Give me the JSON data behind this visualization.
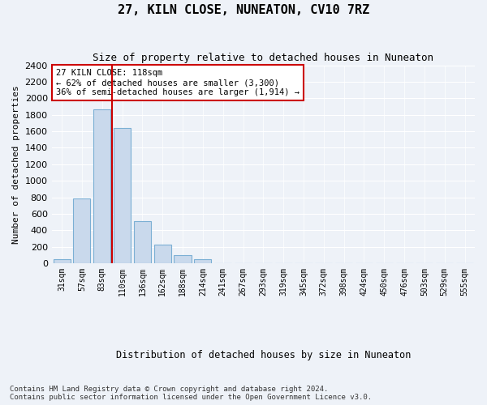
{
  "title": "27, KILN CLOSE, NUNEATON, CV10 7RZ",
  "subtitle": "Size of property relative to detached houses in Nuneaton",
  "xlabel": "Distribution of detached houses by size in Nuneaton",
  "ylabel": "Number of detached properties",
  "bar_labels": [
    "31sqm",
    "57sqm",
    "83sqm",
    "110sqm",
    "136sqm",
    "162sqm",
    "188sqm",
    "214sqm",
    "241sqm",
    "267sqm",
    "293sqm",
    "319sqm",
    "345sqm",
    "372sqm",
    "398sqm",
    "424sqm",
    "450sqm",
    "476sqm",
    "503sqm",
    "529sqm",
    "555sqm"
  ],
  "bar_values": [
    50,
    790,
    1870,
    1640,
    510,
    230,
    100,
    50,
    0,
    0,
    0,
    0,
    0,
    0,
    0,
    0,
    0,
    0,
    0,
    0,
    0
  ],
  "bar_color": "#c9d9ec",
  "bar_edgecolor": "#7bafd4",
  "vline_color": "#cc0000",
  "annotation_text": "27 KILN CLOSE: 118sqm\n← 62% of detached houses are smaller (3,300)\n36% of semi-detached houses are larger (1,914) →",
  "annotation_box_edgecolor": "#cc0000",
  "ylim": [
    0,
    2400
  ],
  "yticks": [
    0,
    200,
    400,
    600,
    800,
    1000,
    1200,
    1400,
    1600,
    1800,
    2000,
    2200,
    2400
  ],
  "footer_line1": "Contains HM Land Registry data © Crown copyright and database right 2024.",
  "footer_line2": "Contains public sector information licensed under the Open Government Licence v3.0.",
  "background_color": "#eef2f8",
  "plot_background": "#eef2f8",
  "grid_color": "#ffffff"
}
